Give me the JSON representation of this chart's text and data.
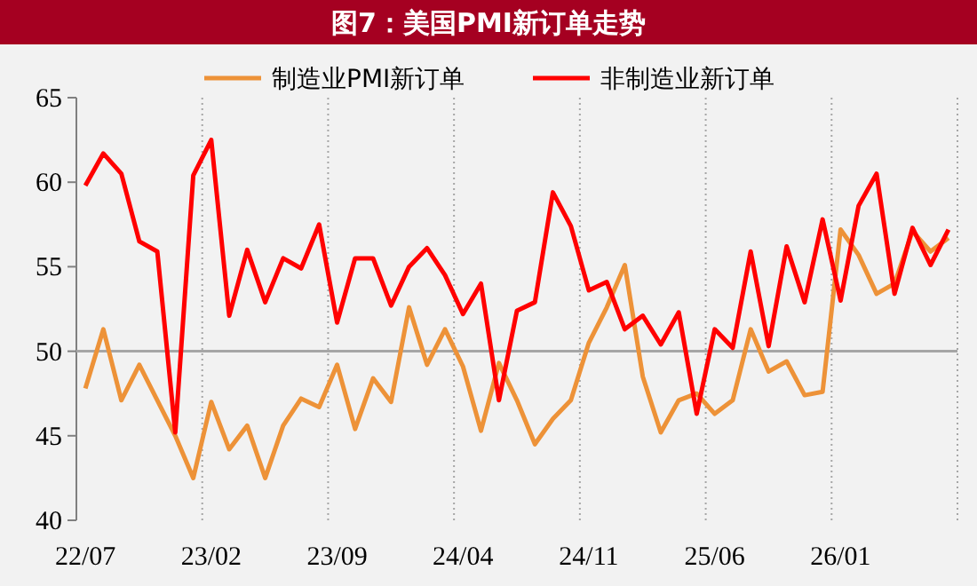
{
  "chart_data": {
    "type": "line",
    "title": "图7：美国PMI新订单走势",
    "categories": [
      "22/07",
      null,
      null,
      null,
      null,
      null,
      null,
      "23/02",
      null,
      null,
      null,
      null,
      null,
      null,
      "23/09",
      null,
      null,
      null,
      null,
      null,
      null,
      "24/04",
      null,
      null,
      null,
      null,
      null,
      null,
      "24/11",
      null,
      null,
      null,
      null,
      null,
      null,
      "25/06",
      null,
      null,
      null,
      null,
      null,
      null,
      "26/01",
      null,
      null,
      null,
      null,
      null,
      null
    ],
    "series": [
      {
        "name": "制造业PMI新订单",
        "color": "#ed9238",
        "values": [
          47.8,
          51.3,
          47.1,
          49.2,
          47.1,
          45.0,
          42.5,
          47.0,
          44.2,
          45.6,
          42.5,
          45.6,
          47.2,
          46.7,
          49.2,
          45.4,
          48.4,
          47.0,
          52.6,
          49.2,
          51.3,
          49.1,
          45.3,
          49.3,
          47.1,
          44.5,
          46.0,
          47.1,
          50.5,
          52.6,
          55.1,
          48.5,
          45.2,
          47.1,
          47.5,
          46.3,
          47.1,
          51.3,
          48.8,
          49.4,
          47.4,
          47.6,
          57.2,
          55.7,
          53.4,
          54.0,
          57.1,
          55.9,
          56.7
        ]
      },
      {
        "name": "非制造业新订单",
        "color": "#ff0000",
        "values": [
          59.8,
          61.7,
          60.5,
          56.5,
          55.9,
          45.2,
          60.4,
          62.5,
          52.1,
          56.0,
          52.9,
          55.5,
          54.9,
          57.5,
          51.7,
          55.5,
          55.5,
          52.7,
          55.0,
          56.1,
          54.5,
          52.2,
          54.0,
          47.1,
          52.4,
          52.9,
          59.4,
          57.4,
          53.6,
          54.1,
          51.3,
          52.1,
          50.4,
          52.3,
          46.3,
          51.3,
          50.2,
          55.9,
          50.3,
          56.2,
          52.9,
          57.8,
          53.0,
          58.6,
          60.5,
          53.4,
          57.3,
          55.1,
          57.2
        ]
      }
    ],
    "ylim": [
      40,
      65
    ],
    "yticks": [
      40,
      45,
      50,
      55,
      60,
      65
    ],
    "ref_lines": [
      {
        "axis": "y",
        "value": 50,
        "color": "#a6a6a6"
      }
    ],
    "grid": "x",
    "legend": "top",
    "marker": "none",
    "line_style": "solid"
  }
}
